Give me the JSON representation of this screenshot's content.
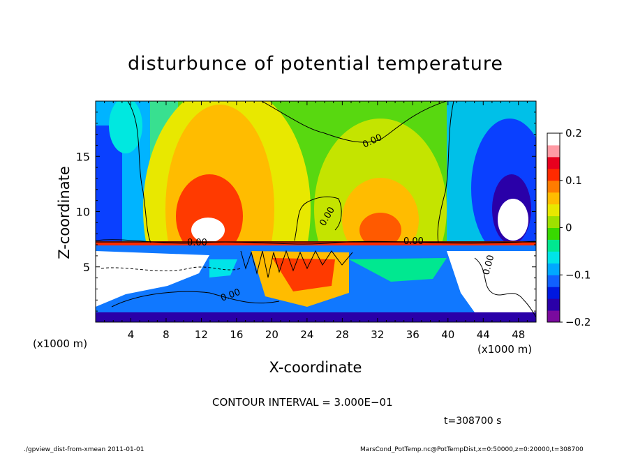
{
  "chart_data": {
    "type": "heatmap",
    "title": "disturbunce of potential temperature",
    "xlabel": "X-coordinate",
    "ylabel": "Z-coordinate",
    "x_unit_label": "(x1000 m)",
    "xlim": [
      0,
      50
    ],
    "ylim": [
      0,
      20
    ],
    "x_ticks": [
      4,
      8,
      12,
      16,
      20,
      24,
      28,
      32,
      36,
      40,
      44,
      48
    ],
    "y_ticks": [
      5,
      10,
      15
    ],
    "colorbar": {
      "range": [
        -0.2,
        0.2
      ],
      "tick_values": [
        0.2,
        0.1,
        0,
        -0.1,
        -0.2
      ],
      "tick_labels": [
        "0.2",
        "0.1",
        "0",
        "−0.1",
        "−0.2"
      ],
      "colors": [
        "#7a0a9e",
        "#2a00a8",
        "#0018e0",
        "#1060ff",
        "#00a8ff",
        "#00e4e8",
        "#00e890",
        "#38d800",
        "#9ee000",
        "#e8e800",
        "#ffbc00",
        "#ff7c00",
        "#ff2a00",
        "#e8001e",
        "#ff9aa4",
        "#ffffff"
      ]
    },
    "contour_label": "0.00",
    "annotations": {
      "contour_interval": "CONTOUR INTERVAL = 3.000E−01",
      "time": "t=308700 s"
    }
  },
  "footer": {
    "left": "./gpview_dist-from-xmean  2011-01-01",
    "right": "MarsCond_PotTemp.nc@PotTempDist,x=0:50000,z=0:20000,t=308700"
  }
}
